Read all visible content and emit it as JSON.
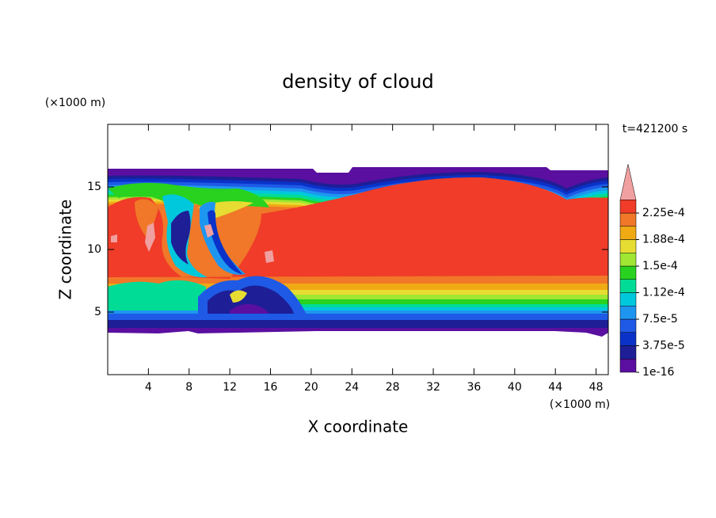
{
  "chart_data": {
    "type": "contour",
    "title": "density of cloud",
    "x_label": "X coordinate",
    "y_label": "Z coordinate",
    "x_unit": "(×1000 m)",
    "y_unit": "(×1000 m)",
    "time_label": "t=421200 s",
    "xlim": [
      0,
      49.2
    ],
    "xticks": [
      4,
      8,
      12,
      16,
      20,
      24,
      28,
      32,
      36,
      40,
      44,
      48
    ],
    "ylim": [
      0,
      20
    ],
    "yticks": [
      5,
      10,
      15
    ],
    "colorbar": {
      "colors": [
        "#5a0fa0",
        "#1e1e96",
        "#0a32c8",
        "#1e5ae6",
        "#1e96f0",
        "#00c8dc",
        "#00dc96",
        "#28d21e",
        "#a0e632",
        "#e6dc32",
        "#f0aa14",
        "#f07828",
        "#f03c28"
      ],
      "over_color": "#f0a0a0",
      "ticks": [
        {
          "value": 1e-16,
          "label": "1e-16"
        },
        {
          "value": 3.75e-05,
          "label": "3.75e-5"
        },
        {
          "value": 7.5e-05,
          "label": "7.5e-5"
        },
        {
          "value": 0.000112,
          "label": "1.12e-4"
        },
        {
          "value": 0.00015,
          "label": "1.5e-4"
        },
        {
          "value": 0.000188,
          "label": "1.88e-4"
        },
        {
          "value": 0.000225,
          "label": "2.25e-4"
        }
      ]
    }
  }
}
